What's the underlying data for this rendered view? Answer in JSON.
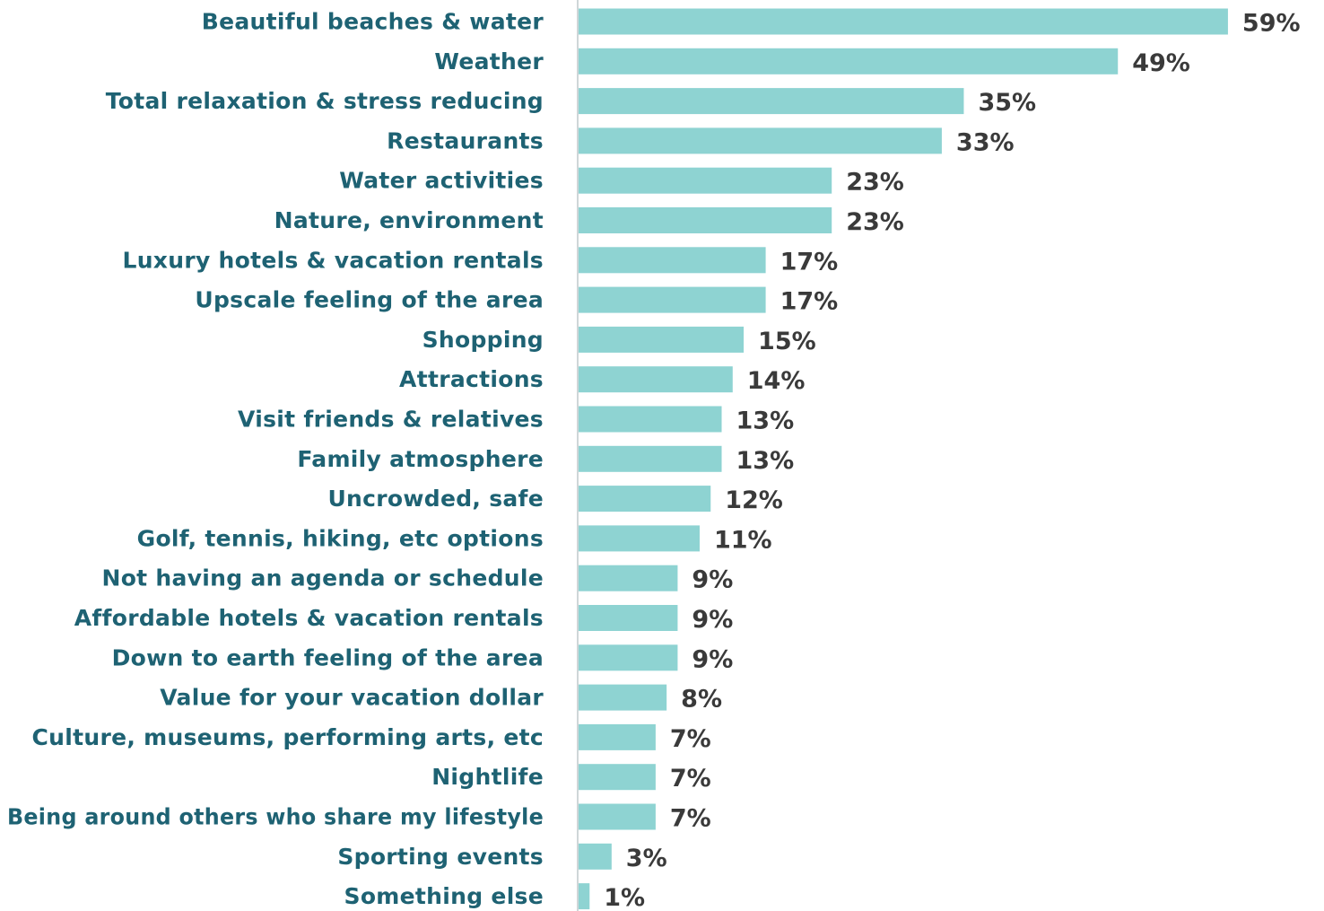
{
  "colors": {
    "bar": "#8ed3d2",
    "category_text": "#1e6273",
    "value_text": "#3a3a3a",
    "axis_line": "#cfd6d8"
  },
  "chart_data": {
    "type": "bar",
    "orientation": "horizontal",
    "categories": [
      "Beautiful beaches & water",
      "Weather",
      "Total relaxation & stress reducing",
      "Restaurants",
      "Water activities",
      "Nature, environment",
      "Luxury hotels & vacation rentals",
      "Upscale feeling of the area",
      "Shopping",
      "Attractions",
      "Visit friends & relatives",
      "Family atmosphere",
      "Uncrowded, safe",
      "Golf, tennis, hiking, etc  options",
      "Not having an agenda or schedule",
      "Affordable hotels & vacation rentals",
      "Down to earth feeling of the area",
      "Value for your vacation dollar",
      "Culture, museums, performing arts, etc",
      "Nightlife",
      "Being around others who share my lifestyle",
      "Sporting events",
      "Something else"
    ],
    "values": [
      59,
      49,
      35,
      33,
      23,
      23,
      17,
      17,
      15,
      14,
      13,
      13,
      12,
      11,
      9,
      9,
      9,
      8,
      7,
      7,
      7,
      3,
      1
    ],
    "value_labels": [
      "59%",
      "49%",
      "35%",
      "33%",
      "23%",
      "23%",
      "17%",
      "17%",
      "15%",
      "14%",
      "13%",
      "13%",
      "12%",
      "11%",
      "9%",
      "9%",
      "9%",
      "8%",
      "7%",
      "7%",
      "7%",
      "3%",
      "1%"
    ],
    "value_unit": "%",
    "title": "",
    "xlabel": "",
    "ylabel": "",
    "xlim": [
      0,
      60
    ],
    "grid": false,
    "legend": "none"
  }
}
